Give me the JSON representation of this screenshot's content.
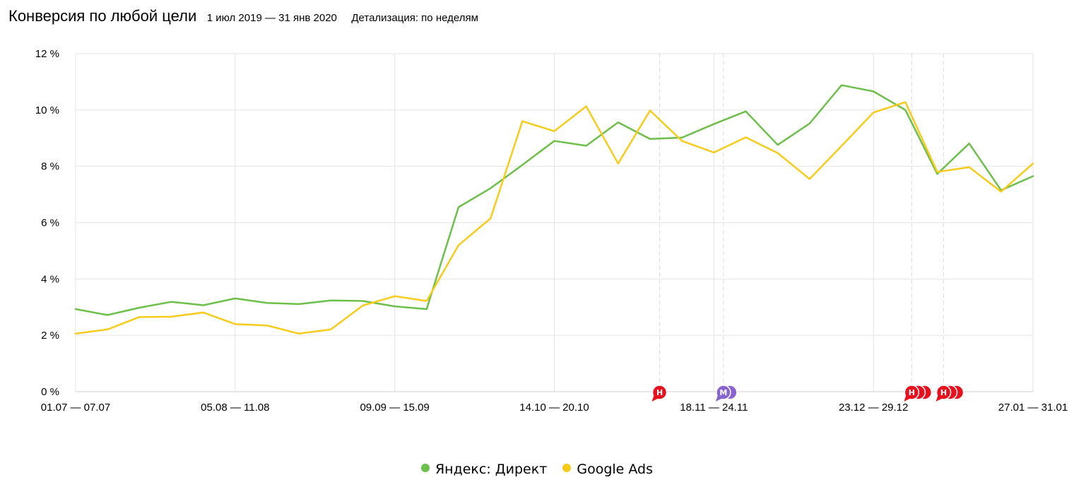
{
  "header": {
    "title": "Конверсия по любой цели",
    "period": "1 июл 2019 — 31 янв 2020",
    "detail": "Детализация: по неделям"
  },
  "colors": {
    "green": "#6cc04a",
    "yellow": "#f8cb1b",
    "grid": "#e4e4e4",
    "marker_red": "#e8101c",
    "marker_purple": "#8a63d2"
  },
  "chart_data": {
    "type": "line",
    "xlabel": "",
    "ylabel": "",
    "ylim": [
      0,
      12
    ],
    "y_ticks": [
      "0 %",
      "2 %",
      "4 %",
      "6 %",
      "8 %",
      "10 %",
      "12 %"
    ],
    "x_labels": [
      {
        "i": 0,
        "text": "01.07 — 07.07"
      },
      {
        "i": 5,
        "text": "05.08 — 11.08"
      },
      {
        "i": 10,
        "text": "09.09 — 15.09"
      },
      {
        "i": 15,
        "text": "14.10 — 20.10"
      },
      {
        "i": 20,
        "text": "18.11 — 24.11"
      },
      {
        "i": 25,
        "text": "23.12 — 29.12"
      },
      {
        "i": 30,
        "text": "27.01 — 31.01"
      }
    ],
    "series": [
      {
        "name": "Яндекс: Директ",
        "color": "#6cc04a",
        "values": [
          2.93,
          2.72,
          2.98,
          3.19,
          3.07,
          3.31,
          3.15,
          3.11,
          3.24,
          3.22,
          3.03,
          2.93,
          6.55,
          7.22,
          8.05,
          8.9,
          8.73,
          9.56,
          8.97,
          9.02,
          9.5,
          9.95,
          8.76,
          9.52,
          10.88,
          10.66,
          10.0,
          7.73,
          8.81,
          7.15,
          7.65
        ]
      },
      {
        "name": "Google Ads",
        "color": "#f8cb1b",
        "values": [
          2.06,
          2.21,
          2.65,
          2.66,
          2.81,
          2.4,
          2.35,
          2.06,
          2.21,
          3.06,
          3.39,
          3.22,
          5.2,
          6.15,
          9.6,
          9.25,
          10.13,
          8.1,
          9.98,
          8.9,
          8.49,
          9.03,
          8.47,
          7.55,
          8.72,
          9.91,
          10.28,
          7.8,
          7.97,
          7.1,
          8.1
        ]
      }
    ],
    "annotations": [
      {
        "x": 18.3,
        "group": [
          "Н"
        ],
        "color": "#e8101c"
      },
      {
        "x": 20.3,
        "group": [
          "М",
          "М"
        ],
        "color": "#8a63d2"
      },
      {
        "x": 26.2,
        "group": [
          "Н",
          "Н",
          "Н"
        ],
        "color": "#e8101c"
      },
      {
        "x": 27.2,
        "group": [
          "Н",
          "Н",
          "Н"
        ],
        "color": "#e8101c"
      }
    ],
    "legend_position": "bottom"
  }
}
